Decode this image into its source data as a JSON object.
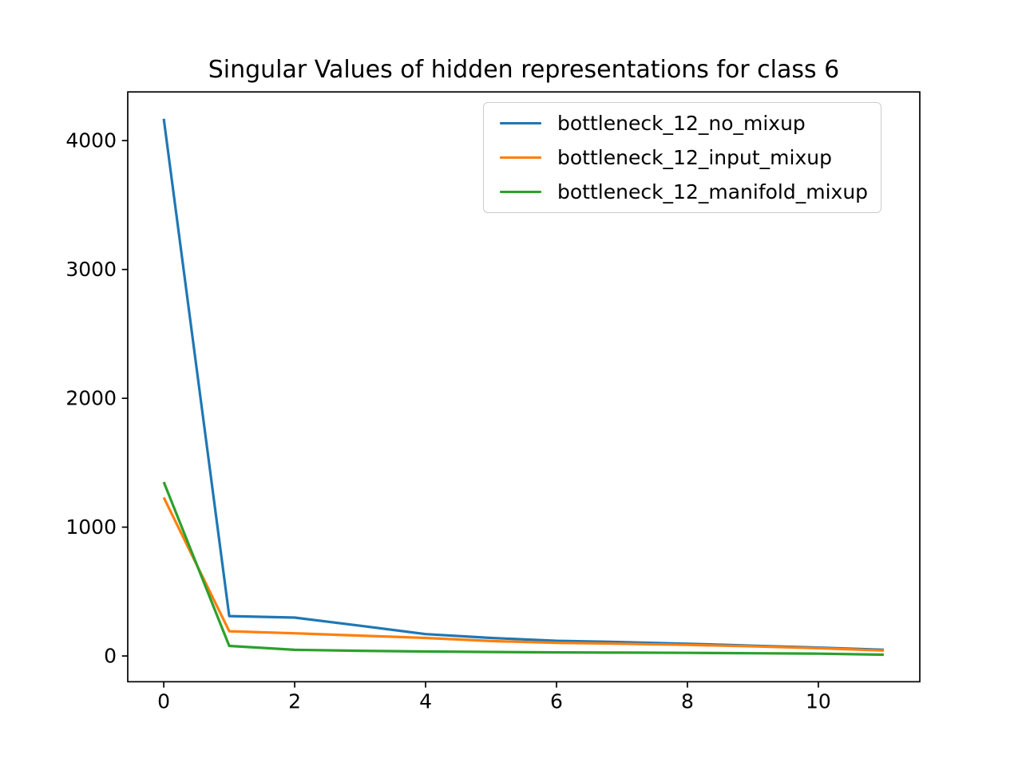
{
  "figure": {
    "background": "#ffffff",
    "text_color": "#000000",
    "spine_color": "#000000",
    "legend_border_color": "#cccccc"
  },
  "chart_data": {
    "type": "line",
    "title": "Singular Values of hidden representations for class 6",
    "xlabel": "",
    "ylabel": "",
    "grid": false,
    "legend_position": "upper right",
    "x": [
      0,
      1,
      2,
      3,
      4,
      5,
      6,
      7,
      8,
      9,
      10,
      11
    ],
    "x_ticks": [
      0,
      2,
      4,
      6,
      8,
      10
    ],
    "y_ticks": [
      0,
      1000,
      2000,
      3000,
      4000
    ],
    "xlim": [
      -0.55,
      11.55
    ],
    "ylim": [
      -200,
      4378
    ],
    "series": [
      {
        "name": "bottleneck_12_no_mixup",
        "color": "#1f77b4",
        "values": [
          4170,
          310,
          298,
          235,
          170,
          140,
          118,
          108,
          95,
          80,
          65,
          48
        ]
      },
      {
        "name": "bottleneck_12_input_mixup",
        "color": "#ff7f0e",
        "values": [
          1230,
          192,
          176,
          158,
          140,
          116,
          102,
          95,
          86,
          75,
          60,
          42
        ]
      },
      {
        "name": "bottleneck_12_manifold_mixup",
        "color": "#2ca02c",
        "values": [
          1350,
          78,
          48,
          40,
          35,
          31,
          28,
          26,
          24,
          21,
          18,
          10
        ]
      }
    ]
  }
}
